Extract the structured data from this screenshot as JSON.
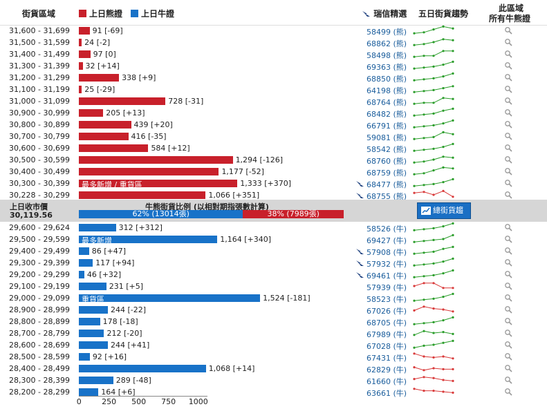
{
  "header": {
    "range_col": "街貨區域",
    "legend_bear": "上日熊證",
    "legend_bull": "上日牛證",
    "ubs_select": "瑞信精選",
    "trend_col": "五日街貨趨勢",
    "all_col_line1": "此區域",
    "all_col_line2": "所有牛熊證"
  },
  "colors": {
    "bear": "#c8202b",
    "bull": "#1872c8",
    "up": "#2a9d2a",
    "down": "#d93a3a",
    "link": "#1a5d9c"
  },
  "middle": {
    "prev_close_label": "上日收市價",
    "prev_close_value": "30,119.56",
    "ratio_title": "牛熊街貨比例 (以相對期指張數計算)",
    "bull_ratio_text": "62% (13014張)",
    "bear_ratio_text": "38% (7989張)",
    "bull_pct": 62,
    "bear_pct": 38,
    "trend_button": "總街貨趨勢"
  },
  "axis": {
    "ticks": [
      "0",
      "250",
      "500",
      "750",
      "1000"
    ]
  },
  "chart_data": {
    "type": "bar",
    "title": "牛熊街貨比例 (以相對期指張數計算)",
    "xlabel": "",
    "ylabel": "街貨區域",
    "xlim": [
      0,
      1000
    ],
    "bear_rows": [
      {
        "range": "31,600 - 31,699",
        "value": 91,
        "change": "[-69]",
        "code": "58499 (熊)",
        "ubs": false,
        "trend": [
          2,
          3,
          6,
          9,
          7
        ]
      },
      {
        "range": "31,500 - 31,599",
        "value": 24,
        "change": "[-2]",
        "code": "68862 (熊)",
        "ubs": false,
        "trend": [
          2,
          3,
          5,
          8,
          7
        ]
      },
      {
        "range": "31,400 - 31,499",
        "value": 97,
        "change": "[0]",
        "code": "58498 (熊)",
        "ubs": false,
        "trend": [
          2,
          3,
          3,
          8,
          8
        ]
      },
      {
        "range": "31,300 - 31,399",
        "value": 32,
        "change": "[+14]",
        "code": "69363 (熊)",
        "ubs": false,
        "trend": [
          2,
          3,
          4,
          6,
          9
        ]
      },
      {
        "range": "31,200 - 31,299",
        "value": 338,
        "change": "[+9]",
        "code": "68850 (熊)",
        "ubs": false,
        "trend": [
          2,
          3,
          4,
          6,
          9
        ]
      },
      {
        "range": "31,100 - 31,199",
        "value": 25,
        "change": "[-29]",
        "code": "64198 (熊)",
        "ubs": false,
        "trend": [
          2,
          3,
          4,
          6,
          8
        ]
      },
      {
        "range": "31,000 - 31,099",
        "value": 728,
        "change": "[-31]",
        "code": "68764 (熊)",
        "ubs": false,
        "trend": [
          2,
          3,
          3,
          8,
          7
        ]
      },
      {
        "range": "30,900 - 30,999",
        "value": 205,
        "change": "[+13]",
        "code": "68482 (熊)",
        "ubs": false,
        "trend": [
          2,
          3,
          4,
          7,
          9
        ]
      },
      {
        "range": "30,800 - 30,899",
        "value": 439,
        "change": "[+20]",
        "code": "66791 (熊)",
        "ubs": false,
        "trend": [
          2,
          3,
          4,
          6,
          9
        ]
      },
      {
        "range": "30,700 - 30,799",
        "value": 416,
        "change": "[-35]",
        "code": "59081 (熊)",
        "ubs": false,
        "trend": [
          2,
          3,
          4,
          9,
          7
        ]
      },
      {
        "range": "30,600 - 30,699",
        "value": 584,
        "change": "[+12]",
        "code": "58542 (熊)",
        "ubs": false,
        "trend": [
          2,
          3,
          4,
          6,
          9
        ]
      },
      {
        "range": "30,500 - 30,599",
        "value": 1294,
        "change": "[-126]",
        "code": "68760 (熊)",
        "ubs": false,
        "trend": [
          2,
          3,
          5,
          8,
          7
        ]
      },
      {
        "range": "30,400 - 30,499",
        "value": 1177,
        "change": "[-52]",
        "code": "68759 (熊)",
        "ubs": false,
        "trend": [
          2,
          3,
          6,
          9,
          8
        ]
      },
      {
        "range": "30,300 - 30,399",
        "value": 1333,
        "change": "[+370]",
        "code": "68477 (熊)",
        "ubs": true,
        "label": "最多新增 / 重貨區",
        "trend": [
          2,
          3,
          4,
          6,
          9
        ]
      },
      {
        "range": "30,228 - 30,299",
        "value": 1066,
        "change": "[+351]",
        "code": "68755 (熊)",
        "ubs": true,
        "trend": [
          7,
          8,
          5,
          9,
          3
        ]
      }
    ],
    "bull_rows": [
      {
        "range": "29,600 - 29,624",
        "value": 312,
        "change": "[+312]",
        "code": "58526 (牛)",
        "ubs": false,
        "trend": [
          2,
          3,
          4,
          6,
          9
        ]
      },
      {
        "range": "29,500 - 29,599",
        "value": 1164,
        "change": "[+340]",
        "code": "69427 (牛)",
        "ubs": false,
        "label": "最多新增",
        "trend": [
          2,
          3,
          4,
          5,
          9
        ]
      },
      {
        "range": "29,400 - 29,499",
        "value": 86,
        "change": "[+47]",
        "code": "57908 (牛)",
        "ubs": true,
        "trend": [
          2,
          3,
          4,
          7,
          9
        ]
      },
      {
        "range": "29,300 - 29,399",
        "value": 117,
        "change": "[+94]",
        "code": "57932 (牛)",
        "ubs": true,
        "trend": [
          2,
          3,
          4,
          6,
          9
        ]
      },
      {
        "range": "29,200 - 29,299",
        "value": 46,
        "change": "[+32]",
        "code": "69461 (牛)",
        "ubs": true,
        "trend": [
          2,
          3,
          4,
          6,
          9
        ]
      },
      {
        "range": "29,100 - 29,199",
        "value": 231,
        "change": "[+5]",
        "code": "57939 (牛)",
        "ubs": false,
        "trend": [
          5,
          8,
          8,
          3,
          3
        ]
      },
      {
        "range": "29,000 - 29,099",
        "value": 1524,
        "change": "[-181]",
        "code": "58523 (牛)",
        "ubs": false,
        "label": "重貨區",
        "trend": [
          2,
          3,
          4,
          6,
          9
        ]
      },
      {
        "range": "28,900 - 28,999",
        "value": 244,
        "change": "[-22]",
        "code": "67026 (牛)",
        "ubs": false,
        "trend": [
          4,
          8,
          6,
          5,
          3
        ]
      },
      {
        "range": "28,800 - 28,899",
        "value": 178,
        "change": "[-18]",
        "code": "68705 (牛)",
        "ubs": false,
        "trend": [
          2,
          3,
          4,
          6,
          9
        ]
      },
      {
        "range": "28,700 - 28,799",
        "value": 212,
        "change": "[-20]",
        "code": "67989 (牛)",
        "ubs": false,
        "trend": [
          3,
          7,
          5,
          6,
          4
        ]
      },
      {
        "range": "28,600 - 28,699",
        "value": 244,
        "change": "[+41]",
        "code": "67028 (牛)",
        "ubs": false,
        "trend": [
          2,
          4,
          5,
          7,
          9
        ]
      },
      {
        "range": "28,500 - 28,599",
        "value": 92,
        "change": "[+16]",
        "code": "67431 (牛)",
        "ubs": false,
        "trend": [
          8,
          5,
          4,
          5,
          3
        ]
      },
      {
        "range": "28,400 - 28,499",
        "value": 1068,
        "change": "[+14]",
        "code": "62829 (牛)",
        "ubs": false,
        "trend": [
          6,
          3,
          5,
          4,
          4
        ]
      },
      {
        "range": "28,300 - 28,399",
        "value": 289,
        "change": "[-48]",
        "code": "61660 (牛)",
        "ubs": false,
        "trend": [
          6,
          8,
          7,
          5,
          4
        ]
      },
      {
        "range": "28,200 - 28,299",
        "value": 164,
        "change": "[+6]",
        "code": "63661 (牛)",
        "ubs": false,
        "trend": [
          8,
          6,
          6,
          5,
          4
        ]
      }
    ]
  }
}
